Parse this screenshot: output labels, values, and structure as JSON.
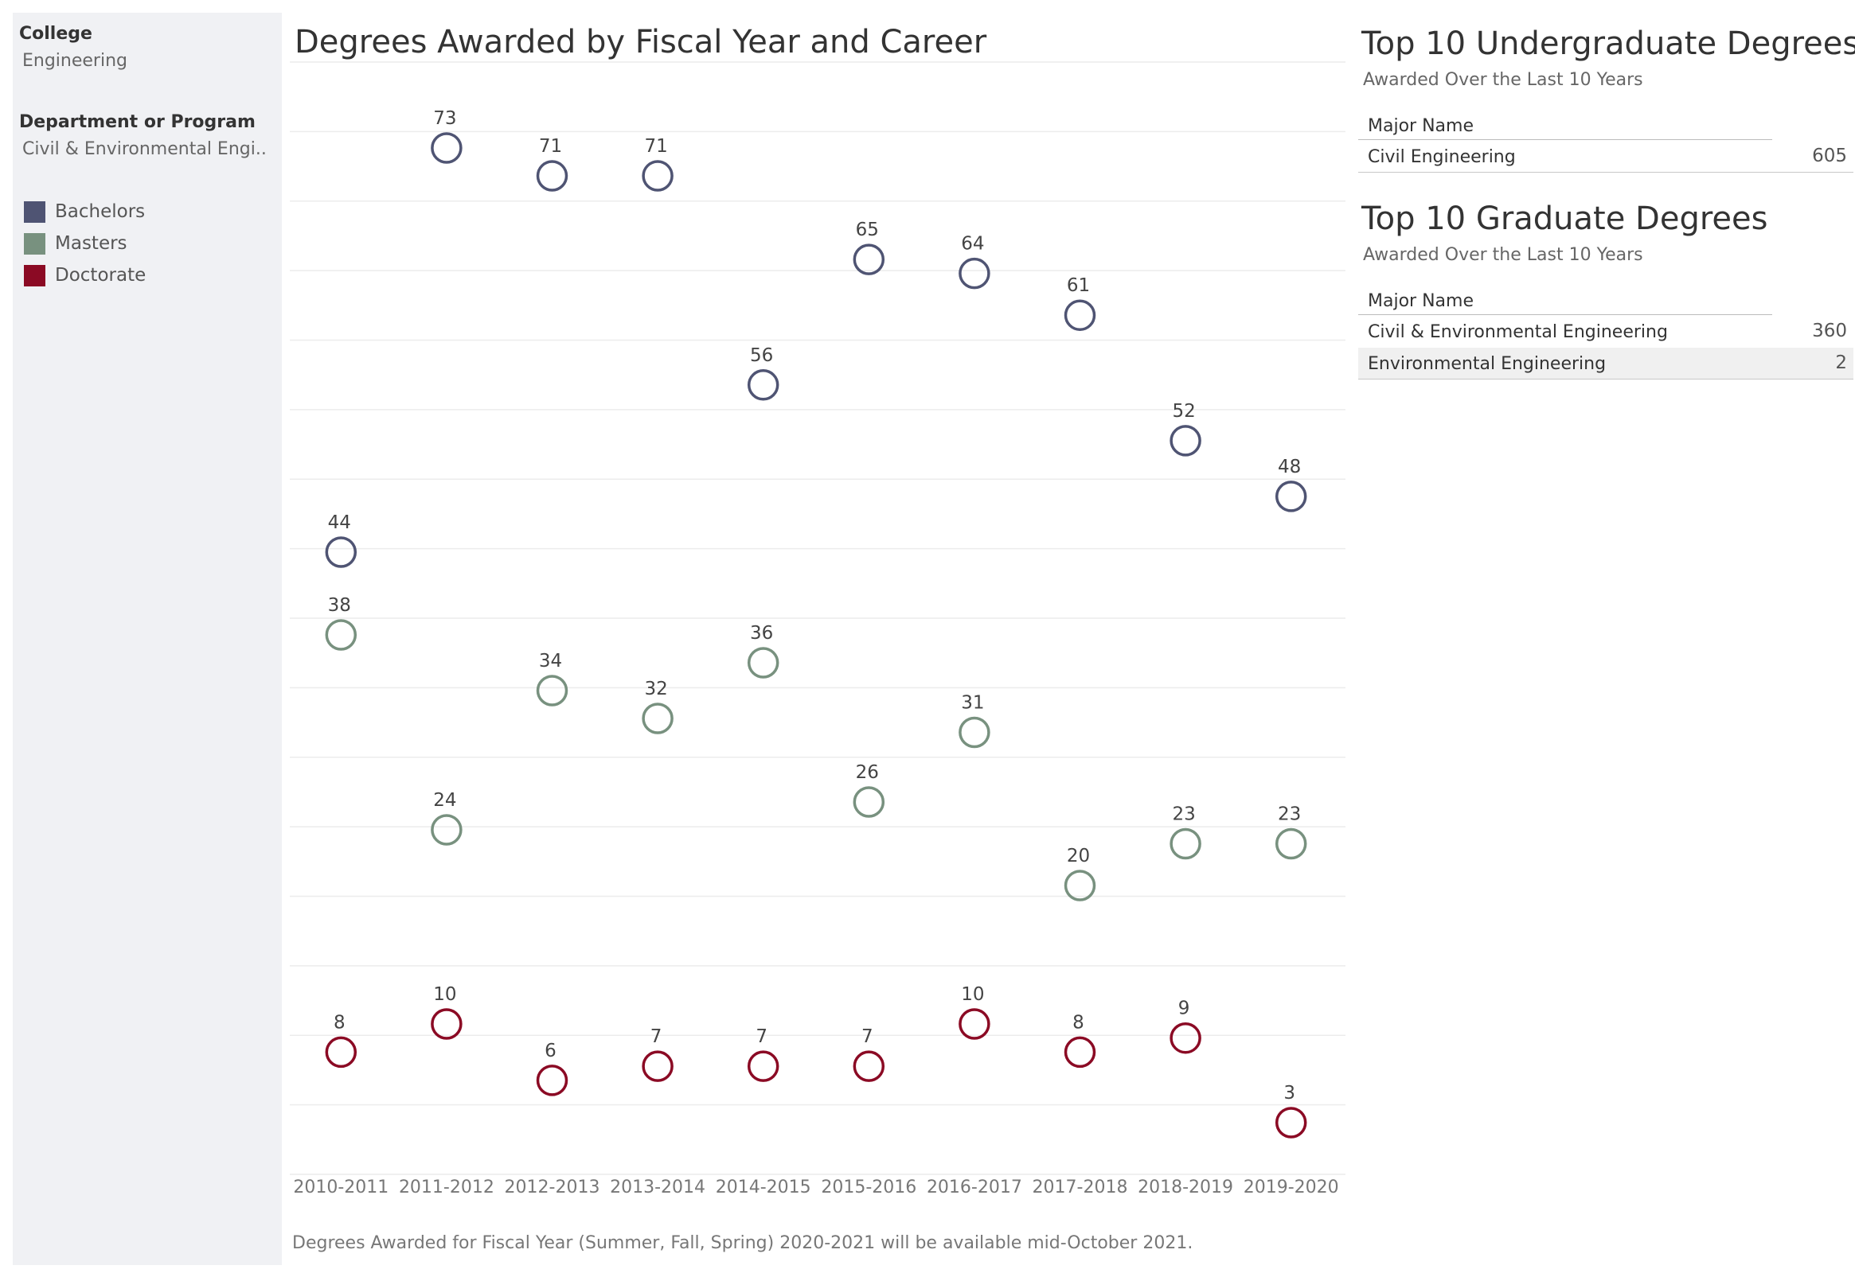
{
  "sidebar": {
    "college_label": "College",
    "college_value": "Engineering",
    "department_label": "Department or Program",
    "department_value": "Civil & Environmental Engi..",
    "legend": [
      {
        "label": "Bachelors",
        "color": "#4f5473"
      },
      {
        "label": "Masters",
        "color": "#78917f"
      },
      {
        "label": "Doctorate",
        "color": "#8b0a24"
      }
    ]
  },
  "main": {
    "title": "Degrees Awarded by Fiscal Year and Career",
    "footnote": "Degrees Awarded for Fiscal Year (Summer, Fall, Spring) 2020-2021 will be available mid-October 2021."
  },
  "chart_data": {
    "type": "scatter",
    "title": "Degrees Awarded by Fiscal Year and Career",
    "categories": [
      "2010-2011",
      "2011-2012",
      "2012-2013",
      "2013-2014",
      "2014-2015",
      "2015-2016",
      "2016-2017",
      "2017-2018",
      "2018-2019",
      "2019-2020"
    ],
    "series": [
      {
        "name": "Bachelors",
        "color": "#4f5473",
        "values": [
          44,
          73,
          71,
          71,
          56,
          65,
          64,
          61,
          52,
          48
        ]
      },
      {
        "name": "Masters",
        "color": "#78917f",
        "values": [
          38,
          24,
          34,
          32,
          36,
          26,
          31,
          20,
          23,
          23
        ]
      },
      {
        "name": "Doctorate",
        "color": "#8b0a24",
        "values": [
          8,
          10,
          6,
          7,
          7,
          7,
          10,
          8,
          9,
          3
        ]
      }
    ],
    "grid": true,
    "marker": "open-circle"
  },
  "undergrad": {
    "title": "Top 10 Undergraduate Degrees",
    "subtitle": "Awarded Over the Last 10 Years",
    "header": "Major Name",
    "rows": [
      {
        "name": "Civil Engineering",
        "value": "605"
      }
    ]
  },
  "graduate": {
    "title": "Top 10 Graduate Degrees",
    "subtitle": "Awarded Over the Last 10 Years",
    "header": "Major Name",
    "rows": [
      {
        "name": "Civil & Environmental Engineering",
        "value": "360"
      },
      {
        "name": "Environmental Engineering",
        "value": "2"
      }
    ]
  }
}
